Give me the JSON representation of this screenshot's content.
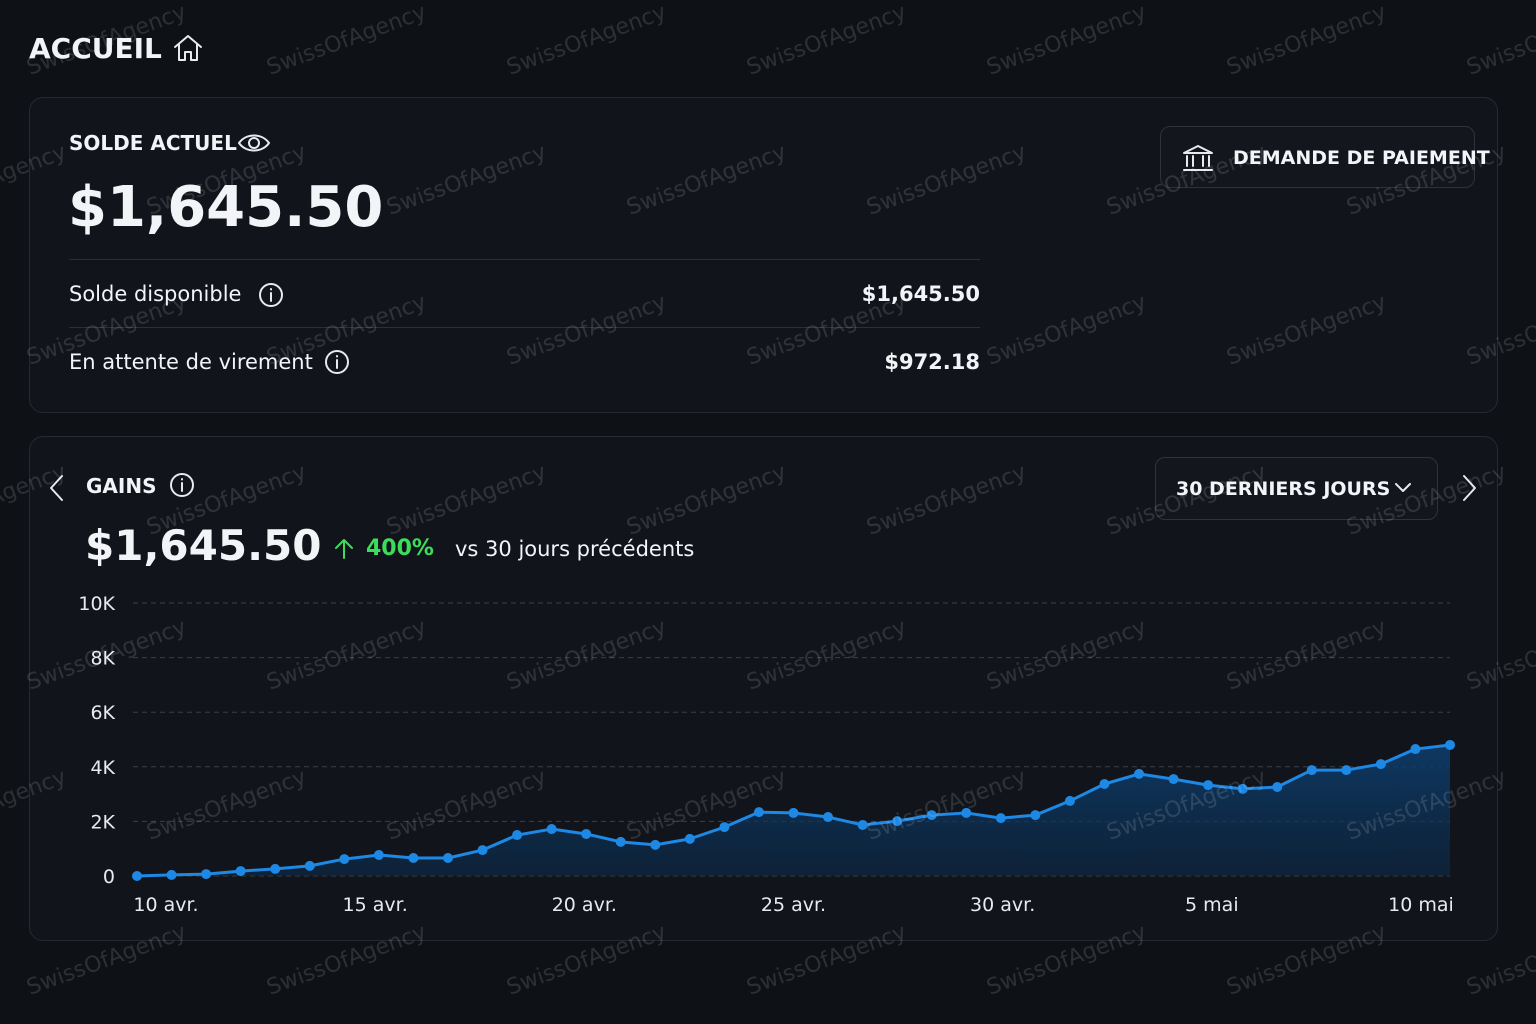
{
  "header": {
    "title": "ACCUEIL"
  },
  "watermark": "SwissOfAgency",
  "balance": {
    "label": "SOLDE ACTUEL",
    "amount": "$1,645.50",
    "button": "DEMANDE DE PAIEMENT",
    "rows": [
      {
        "label": "Solde disponible",
        "value": "$1,645.50"
      },
      {
        "label": "En attente de virement",
        "value": "$972.18"
      }
    ]
  },
  "gains": {
    "title": "GAINS",
    "amount": "$1,645.50",
    "change": "400%",
    "comparison": "vs 30 jours précédents",
    "period": "30 DERNIERS JOURS"
  },
  "chart_data": {
    "type": "line",
    "color": "#1e88e5",
    "grid": true,
    "values": [
      0,
      40,
      70,
      180,
      260,
      370,
      620,
      770,
      660,
      660,
      950,
      1500,
      1720,
      1540,
      1250,
      1140,
      1360,
      1790,
      2340,
      2310,
      2160,
      1870,
      2010,
      2230,
      2310,
      2120,
      2230,
      2750,
      3370,
      3740,
      3550,
      3330,
      3190,
      3260,
      3880,
      3880,
      4100,
      4650,
      4800
    ],
    "x_labels": [
      "10 avr.",
      "15 avr.",
      "20 avr.",
      "25 avr.",
      "30 avr.",
      "5 mai",
      "10 mai"
    ],
    "ylim": [
      0,
      10000
    ],
    "yticks": [
      0,
      {
        "value": 2000,
        "label": "2K"
      },
      {
        "value": 4000,
        "label": "4K"
      },
      {
        "value": 6000,
        "label": "6K"
      },
      {
        "value": 8000,
        "label": "8K"
      },
      {
        "value": 10000,
        "label": "10K"
      }
    ]
  }
}
